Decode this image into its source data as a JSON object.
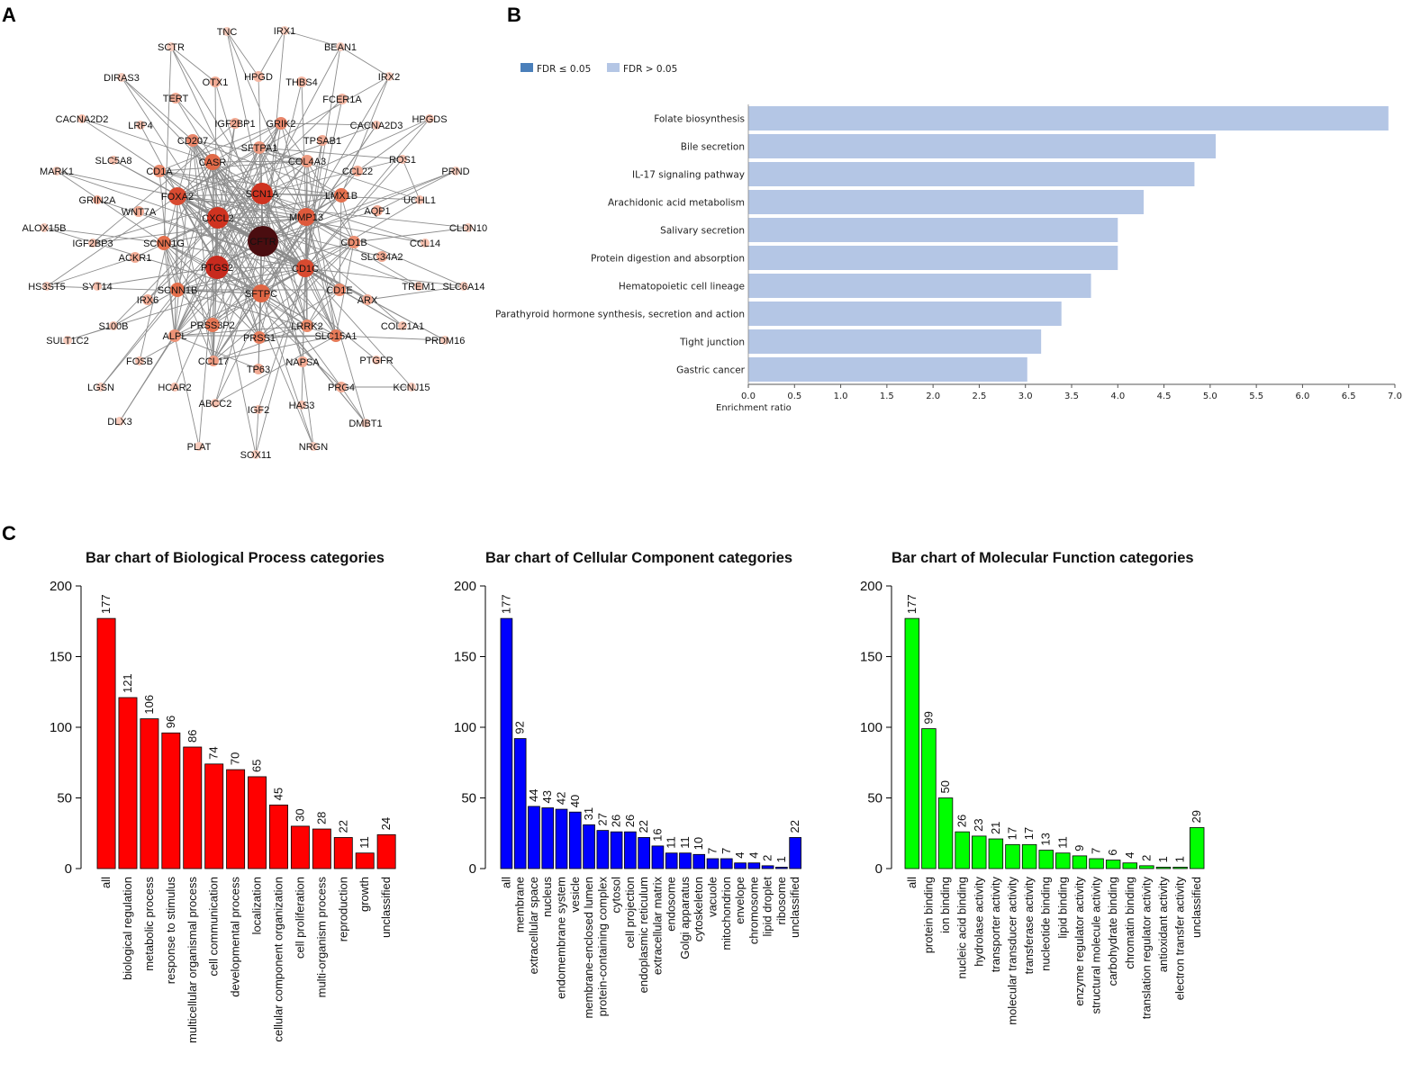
{
  "panels": {
    "a": "A",
    "b": "B",
    "c": "C"
  },
  "network": {
    "nodes": [
      {
        "id": "CFTR",
        "c": "#4a0d10",
        "big": 1
      },
      {
        "id": "PTGS2",
        "c": "#c72a1e",
        "big": 1
      },
      {
        "id": "CXCL2",
        "c": "#cf3320",
        "big": 1
      },
      {
        "id": "SCN1A",
        "c": "#cf3320",
        "big": 1
      },
      {
        "id": "FOXA2",
        "c": "#d84a30",
        "big": 1
      },
      {
        "id": "CD1C",
        "c": "#d84a30",
        "big": 1
      },
      {
        "id": "MMP13",
        "c": "#de5a3c",
        "big": 1
      },
      {
        "id": "SFTPC",
        "c": "#e06644",
        "big": 1
      },
      {
        "id": "CASR",
        "c": "#e06a48"
      },
      {
        "id": "SCNN1G",
        "c": "#e46f4c"
      },
      {
        "id": "SCNN1B",
        "c": "#e46f4c"
      },
      {
        "id": "LMX1B",
        "c": "#e4714e"
      },
      {
        "id": "PRSS3P2",
        "c": "#e57654"
      },
      {
        "id": "SLC15A1",
        "c": "#e57a58"
      },
      {
        "id": "LRRK2",
        "c": "#ea8a6a"
      },
      {
        "id": "PRSS1",
        "c": "#e87f5e"
      },
      {
        "id": "CD207",
        "c": "#e9866a"
      },
      {
        "id": "CD1A",
        "c": "#ea8a6c"
      },
      {
        "id": "CD1E",
        "c": "#ea8a6c"
      },
      {
        "id": "CD1B",
        "c": "#eb8e70"
      },
      {
        "id": "GRIK2",
        "c": "#e9866a"
      },
      {
        "id": "COL4A3",
        "c": "#ed9a80"
      },
      {
        "id": "SFTPA1",
        "c": "#ed9a80"
      },
      {
        "id": "ALPL",
        "c": "#ec9276"
      },
      {
        "id": "CCL17",
        "c": "#ef9c82"
      },
      {
        "id": "IGF2BP1",
        "c": "#f2ab94"
      },
      {
        "id": "OTX1",
        "c": "#f2ab94"
      },
      {
        "id": "TERT",
        "c": "#f2ab94"
      },
      {
        "id": "HPGD",
        "c": "#f4b6a2"
      },
      {
        "id": "THBS4",
        "c": "#f4b6a2"
      },
      {
        "id": "FCER1A",
        "c": "#f4b6a2"
      },
      {
        "id": "TPSAB1",
        "c": "#f2ab94"
      },
      {
        "id": "CCL22",
        "c": "#f2ab94"
      },
      {
        "id": "AQP1",
        "c": "#f2ab94"
      },
      {
        "id": "SLC34A2",
        "c": "#f2ab94"
      },
      {
        "id": "ARX",
        "c": "#f2ab94"
      },
      {
        "id": "TREM1",
        "c": "#f6c0ae"
      },
      {
        "id": "CCL14",
        "c": "#f6c0ae"
      },
      {
        "id": "ROS1",
        "c": "#f6c0ae"
      },
      {
        "id": "UCHL1",
        "c": "#f6c0ae"
      },
      {
        "id": "HPGDS",
        "c": "#f6c0ae"
      },
      {
        "id": "CACNA2D3",
        "c": "#f6c0ae"
      },
      {
        "id": "TNC",
        "c": "#f8ccbd"
      },
      {
        "id": "IRX1",
        "c": "#f8ccbd"
      },
      {
        "id": "BEAN1",
        "c": "#f8ccbd"
      },
      {
        "id": "IRX2",
        "c": "#f8ccbd"
      },
      {
        "id": "SCTR",
        "c": "#f8ccbd"
      },
      {
        "id": "DIRAS3",
        "c": "#f8ccbd"
      },
      {
        "id": "CACNA2D2",
        "c": "#f6c0ae"
      },
      {
        "id": "LRP4",
        "c": "#f6c0ae"
      },
      {
        "id": "SLC5A8",
        "c": "#f6c0ae"
      },
      {
        "id": "MARK1",
        "c": "#f8ccbd"
      },
      {
        "id": "GRIN2A",
        "c": "#f2ab94"
      },
      {
        "id": "WNT7A",
        "c": "#f2ab94"
      },
      {
        "id": "ALOX15B",
        "c": "#f8ccbd"
      },
      {
        "id": "IGF2BP3",
        "c": "#f6c0ae"
      },
      {
        "id": "ACKR1",
        "c": "#f2ab94"
      },
      {
        "id": "HS3ST5",
        "c": "#f8ccbd"
      },
      {
        "id": "SYT14",
        "c": "#f6c0ae"
      },
      {
        "id": "IRX6",
        "c": "#f2ab94"
      },
      {
        "id": "S100B",
        "c": "#f6c0ae"
      },
      {
        "id": "SULT1C2",
        "c": "#f8ccbd"
      },
      {
        "id": "FOSB",
        "c": "#f6c0ae"
      },
      {
        "id": "LGSN",
        "c": "#f8ccbd"
      },
      {
        "id": "HCAR2",
        "c": "#f6c0ae"
      },
      {
        "id": "DLX3",
        "c": "#f8ccbd"
      },
      {
        "id": "ABCC2",
        "c": "#f6c0ae"
      },
      {
        "id": "PLAT",
        "c": "#f8ccbd"
      },
      {
        "id": "IGF2",
        "c": "#f6c0ae"
      },
      {
        "id": "SOX11",
        "c": "#f8ccbd"
      },
      {
        "id": "TP63",
        "c": "#f2ab94"
      },
      {
        "id": "NAPSA",
        "c": "#f2ab94"
      },
      {
        "id": "HAS3",
        "c": "#f6c0ae"
      },
      {
        "id": "NRGN",
        "c": "#f8ccbd"
      },
      {
        "id": "PRG4",
        "c": "#f2ab94"
      },
      {
        "id": "DMBT1",
        "c": "#f8ccbd"
      },
      {
        "id": "PTGFR",
        "c": "#f6c0ae"
      },
      {
        "id": "KCNJ15",
        "c": "#f8ccbd"
      },
      {
        "id": "COL21A1",
        "c": "#f6c0ae"
      },
      {
        "id": "PRDM16",
        "c": "#f8ccbd"
      },
      {
        "id": "SLC6A14",
        "c": "#f8ccbd"
      },
      {
        "id": "CLDN10",
        "c": "#f8ccbd"
      },
      {
        "id": "PRND",
        "c": "#f8ccbd"
      }
    ]
  },
  "enrichment_chart": {
    "type": "bar",
    "orientation": "horizontal",
    "legend": [
      {
        "label": "FDR ≤ 0.05",
        "color": "#4a7fba"
      },
      {
        "label": "FDR > 0.05",
        "color": "#b4c6e5"
      }
    ],
    "categories": [
      "Folate biosynthesis",
      "Bile secretion",
      "IL-17 signaling pathway",
      "Arachidonic acid metabolism",
      "Salivary secretion",
      "Protein digestion and absorption",
      "Hematopoietic cell lineage",
      "Parathyroid hormone synthesis, secretion and action",
      "Tight junction",
      "Gastric cancer"
    ],
    "values": [
      6.93,
      5.06,
      4.83,
      4.28,
      4.0,
      4.0,
      3.71,
      3.39,
      3.17,
      3.02
    ],
    "xlim": [
      0,
      7.0
    ],
    "ticks": [
      "0.0",
      "0.5",
      "1.0",
      "1.5",
      "2.0",
      "2.5",
      "3.0",
      "3.5",
      "4.0",
      "4.5",
      "5.0",
      "5.5",
      "6.0",
      "6.5",
      "7.0"
    ],
    "xlabel": "Enrichment ratio"
  },
  "chart_data": [
    {
      "type": "bar",
      "title": "Bar chart of Biological Process categories",
      "color": "#ff0000",
      "ylim": [
        0,
        200
      ],
      "yticks": [
        "0",
        "50",
        "100",
        "150",
        "200"
      ],
      "categories": [
        "all",
        "biological regulation",
        "metabolic process",
        "response to stimulus",
        "multicellular organismal process",
        "cell communication",
        "developmental process",
        "localization",
        "cellular component organization",
        "cell proliferation",
        "multi-organism process",
        "reproduction",
        "growth",
        "unclassified"
      ],
      "values": [
        177,
        121,
        106,
        96,
        86,
        74,
        70,
        65,
        45,
        30,
        28,
        22,
        11,
        24
      ]
    },
    {
      "type": "bar",
      "title": "Bar chart of Cellular Component categories",
      "color": "#0000ff",
      "ylim": [
        0,
        200
      ],
      "yticks": [
        "0",
        "50",
        "100",
        "150",
        "200"
      ],
      "categories": [
        "all",
        "membrane",
        "extracellular space",
        "nucleus",
        "endomembrane system",
        "vesicle",
        "membrane-enclosed lumen",
        "protein-containing complex",
        "cytosol",
        "cell projection",
        "endoplasmic reticulum",
        "extracellular matrix",
        "endosome",
        "Golgi apparatus",
        "cytoskeleton",
        "vacuole",
        "mitochondrion",
        "envelope",
        "chromosome",
        "lipid droplet",
        "ribosome",
        "unclassified"
      ],
      "values": [
        177,
        92,
        44,
        43,
        42,
        40,
        31,
        27,
        26,
        26,
        22,
        16,
        11,
        11,
        10,
        7,
        7,
        4,
        4,
        2,
        1,
        22
      ]
    },
    {
      "type": "bar",
      "title": "Bar chart of Molecular Function categories",
      "color": "#00ff00",
      "ylim": [
        0,
        200
      ],
      "yticks": [
        "0",
        "50",
        "100",
        "150",
        "200"
      ],
      "categories": [
        "all",
        "protein binding",
        "ion binding",
        "nucleic acid binding",
        "hydrolase activity",
        "transporter activity",
        "molecular transducer activity",
        "transferase activity",
        "nucleotide binding",
        "lipid binding",
        "enzyme regulator activity",
        "structural molecule activity",
        "carbohydrate binding",
        "chromatin binding",
        "translation regulator activity",
        "antioxidant activity",
        "electron transfer activity",
        "unclassified"
      ],
      "values": [
        177,
        99,
        50,
        26,
        23,
        21,
        17,
        17,
        13,
        11,
        9,
        7,
        6,
        4,
        2,
        1,
        1,
        29
      ]
    }
  ]
}
